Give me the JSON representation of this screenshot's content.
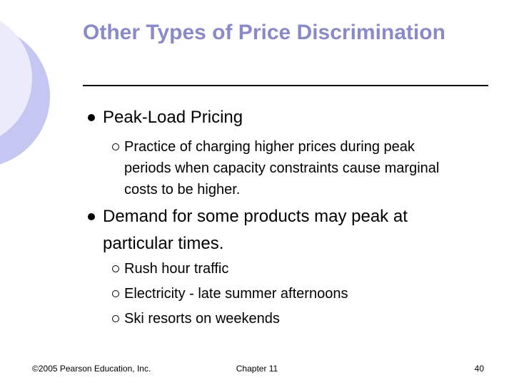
{
  "header": {
    "title": "Other Types of Price Discrimination"
  },
  "bullets": [
    {
      "text": "Peak-Load Pricing",
      "subs": [
        "Practice of charging higher prices during peak periods when capacity constraints cause marginal costs to be higher."
      ]
    },
    {
      "text": "Demand for some products may peak at particular times.",
      "subs": [
        "Rush hour traffic",
        "Electricity - late summer afternoons",
        "Ski resorts on weekends"
      ]
    }
  ],
  "footer": {
    "left": "©2005 Pearson Education, Inc.",
    "center": "Chapter 11",
    "right": "40"
  }
}
